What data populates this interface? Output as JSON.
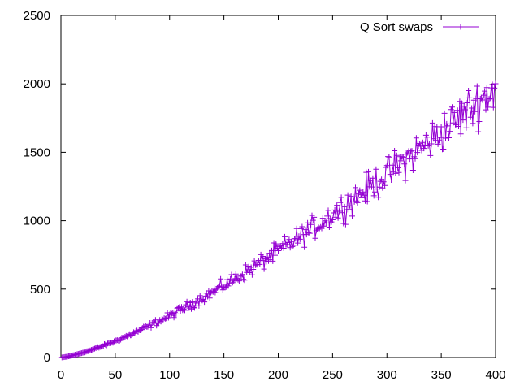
{
  "chart_data": {
    "type": "line",
    "title": "",
    "xlabel": "",
    "ylabel": "",
    "xlim": [
      0,
      400
    ],
    "ylim": [
      0,
      2500
    ],
    "xticks": [
      0,
      50,
      100,
      150,
      200,
      250,
      300,
      350,
      400
    ],
    "yticks": [
      0,
      500,
      1000,
      1500,
      2000,
      2500
    ],
    "grid": false,
    "legend_position": "top-right",
    "series": [
      {
        "name": "Q Sort swaps",
        "color": "#9400d3",
        "marker": "plus",
        "formula": {
          "coefficient": 0.624,
          "exponent": 1.345,
          "noise_scale": 0.045,
          "x_start": 1,
          "x_end": 400
        }
      }
    ]
  }
}
